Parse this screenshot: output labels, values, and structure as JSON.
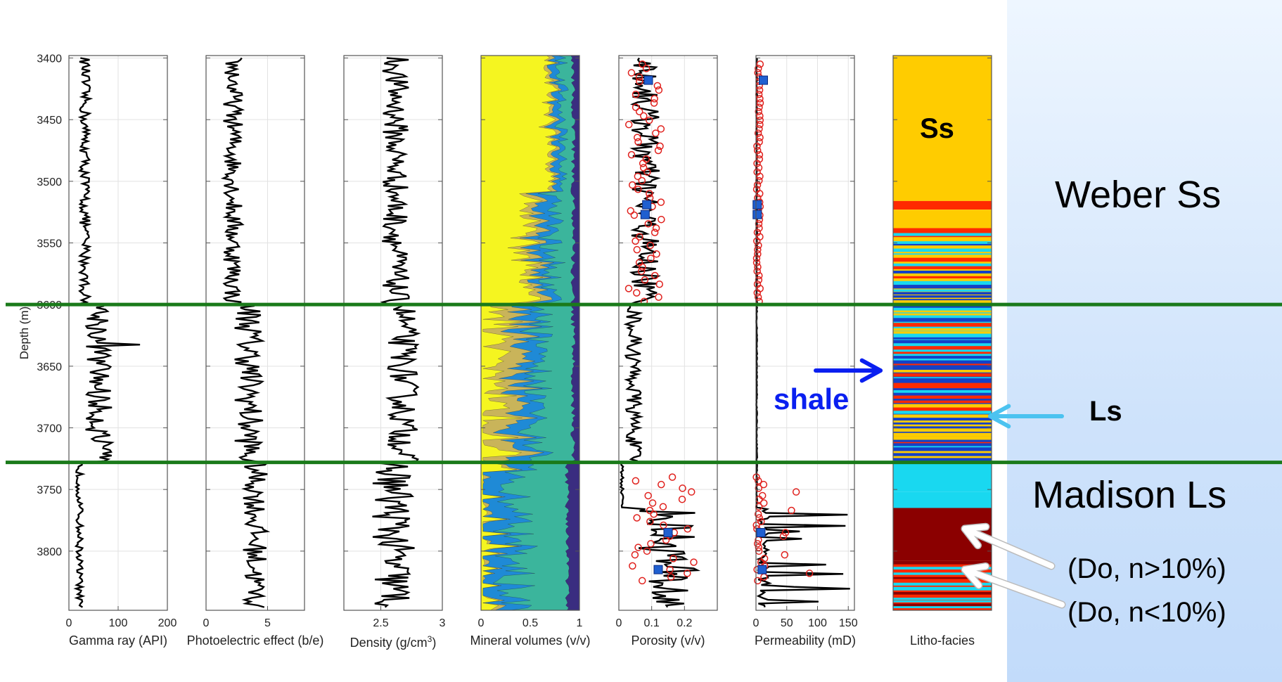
{
  "colors": {
    "accent_blue": "#0a1ff0",
    "light_blue": "#4cc3f0",
    "boundary_green": "#1a7a1a",
    "log_line": "#000000",
    "core_circle": "#e0201c",
    "core_square": "#1f5fd0",
    "sandstone": "#ffcc00",
    "limestone": "#19d8f0",
    "shale": "#1340c8",
    "dolomite_high": "#8b0000",
    "dolomite_low": "#ff2a00",
    "mineral_quartz": "#f5f520",
    "mineral_dolomite": "#c9b45a",
    "mineral_calcite": "#1f8ad6",
    "mineral_clay": "#3bb59c",
    "mineral_other": "#3a2d80"
  },
  "annotations": {
    "facies_ss": "Ss",
    "weber": "Weber Ss",
    "shale": "shale",
    "ls": "Ls",
    "madison": "Madison Ls",
    "do_high": "(Do, n>10%)",
    "do_low": "(Do, n<10%)"
  },
  "chart_data": {
    "type": "line",
    "ylabel": "Depth (m)",
    "y_axis": {
      "ticks": [
        "3400",
        "3450",
        "3500",
        "3550",
        "3600",
        "3650",
        "3700",
        "3750",
        "3800"
      ],
      "ylim": [
        3398,
        3848
      ],
      "reversed": true
    },
    "tracks": [
      {
        "name": "gamma-ray",
        "xlabel": "Gamma ray (API)",
        "xlim": [
          0,
          200
        ],
        "xticks": [
          "0",
          "100",
          "200"
        ],
        "grid": true
      },
      {
        "name": "photoelectric",
        "xlabel": "Photoelectric effect (b/e)",
        "xlim": [
          0,
          8
        ],
        "xticks": [
          "0",
          "5"
        ],
        "grid": true
      },
      {
        "name": "density",
        "xlabel_prefix": "Density (g/cm",
        "xlabel_sup": "3",
        "xlabel_suffix": ")",
        "xlim": [
          2.2,
          3
        ],
        "xticks": [
          "2.5",
          "3"
        ],
        "grid": true
      },
      {
        "name": "mineral-volumes",
        "xlabel": "Mineral volumes (v/v)",
        "xlim": [
          0,
          1
        ],
        "xticks": [
          "0",
          "0.5",
          "1"
        ],
        "type": "area"
      },
      {
        "name": "porosity",
        "xlabel": "Porosity (v/v)",
        "xlim": [
          0,
          0.3
        ],
        "xticks": [
          "0",
          "0.1",
          "0.2"
        ],
        "grid": true
      },
      {
        "name": "permeability",
        "xlabel": "Permeability (mD)",
        "xlim": [
          0,
          160
        ],
        "xticks": [
          "0",
          "50",
          "100",
          "150"
        ],
        "grid": true
      },
      {
        "name": "litho-facies",
        "xlabel": "Litho-facies",
        "type": "facies"
      }
    ],
    "boundaries": [
      3600,
      3728
    ],
    "porosity_core_squares": [
      [
        0.09,
        3418
      ],
      [
        0.085,
        3519
      ],
      [
        0.08,
        3527
      ],
      [
        0.15,
        3785
      ],
      [
        0.12,
        3815
      ]
    ],
    "permeability_core_squares": [
      [
        12,
        3418
      ],
      [
        2,
        3519
      ],
      [
        2,
        3527
      ],
      [
        8,
        3785
      ],
      [
        10,
        3815
      ]
    ],
    "facies_intervals": [
      {
        "top": 3398,
        "base": 3516,
        "facies": "sandstone"
      },
      {
        "top": 3516,
        "base": 3523,
        "facies": "dolomite_low"
      },
      {
        "top": 3523,
        "base": 3538,
        "facies": "sandstone"
      },
      {
        "top": 3538,
        "base": 3542,
        "facies": "dolomite_low"
      },
      {
        "top": 3542,
        "base": 3600,
        "facies": "sandstone",
        "mixed": true
      },
      {
        "top": 3600,
        "base": 3640,
        "facies": "limestone",
        "mixed": true
      },
      {
        "top": 3640,
        "base": 3728,
        "facies": "shale",
        "mixed": true
      },
      {
        "top": 3728,
        "base": 3752,
        "facies": "limestone"
      },
      {
        "top": 3752,
        "base": 3765,
        "facies": "limestone"
      },
      {
        "top": 3765,
        "base": 3808,
        "facies": "dolomite_high"
      },
      {
        "top": 3808,
        "base": 3848,
        "facies": "dolomite_low",
        "mixed": true
      }
    ]
  }
}
